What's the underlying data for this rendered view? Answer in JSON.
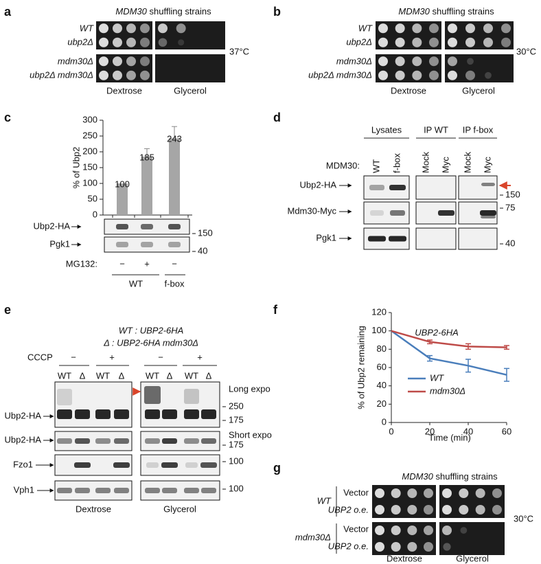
{
  "figure": {
    "a": {
      "letter": "a",
      "title_gene": "MDM30",
      "title_rest": "shuffling strains",
      "strains": [
        "WT",
        "ubp2Δ",
        "mdm30Δ",
        "ubp2Δ mdm30Δ"
      ],
      "temperature": "37°C",
      "media": [
        "Dextrose",
        "Glycerol"
      ]
    },
    "b": {
      "letter": "b",
      "title_gene": "MDM30",
      "title_rest": "shuffling strains",
      "strains": [
        "WT",
        "ubp2Δ",
        "mdm30Δ",
        "ubp2Δ mdm30Δ"
      ],
      "temperature": "30°C",
      "media": [
        "Dextrose",
        "Glycerol"
      ]
    },
    "c": {
      "letter": "c",
      "blots": [
        "Ubp2-HA",
        "Pgk1"
      ],
      "markers": [
        "150",
        "40"
      ],
      "treatment_label": "MG132:",
      "treatments": [
        "−",
        "+",
        "−"
      ],
      "groups": [
        "WT",
        "f-box"
      ]
    },
    "d": {
      "letter": "d",
      "groups": [
        "Lysates",
        "IP WT",
        "IP f-box"
      ],
      "lane_label": "MDM30:",
      "lanes": [
        "WT",
        "f-box",
        "Mock",
        "Myc",
        "Mock",
        "Myc"
      ],
      "blots": [
        "Ubp2-HA",
        "Mdm30-Myc",
        "Pgk1"
      ],
      "markers": [
        "150",
        "75",
        "40"
      ]
    },
    "e": {
      "letter": "e",
      "legend": [
        "WT : UBP2-6HA",
        "Δ : UBP2-6HA mdm30Δ"
      ],
      "treatment_label": "CCCP",
      "treatments": [
        "−",
        "+",
        "−",
        "+"
      ],
      "lanes": [
        "WT",
        "Δ",
        "WT",
        "Δ",
        "WT",
        "Δ",
        "WT",
        "Δ"
      ],
      "blots": [
        "Ubp2-HA",
        "Ubp2-HA",
        "Fzo1",
        "Vph1"
      ],
      "exposures": [
        "Long expo",
        "Short expo"
      ],
      "markers": [
        "250",
        "175",
        "175",
        "100",
        "100"
      ],
      "media": [
        "Dextrose",
        "Glycerol"
      ]
    },
    "f": {
      "letter": "f"
    },
    "g": {
      "letter": "g",
      "title_gene": "MDM30",
      "title_rest": "shuffling strains",
      "strains": [
        "WT",
        "mdm30Δ"
      ],
      "constructs": [
        "Vector",
        "UBP2 o.e.",
        "Vector",
        "UBP2 o.e."
      ],
      "temperature": "30°C",
      "media": [
        "Dextrose",
        "Glycerol"
      ]
    }
  },
  "chart_data": [
    {
      "type": "bar",
      "ylabel": "% of Ubp2",
      "values": [
        100,
        185,
        243
      ],
      "errors": [
        0,
        25,
        37
      ],
      "color": "#a6a6a6",
      "ylim": [
        0,
        300
      ],
      "yticks": [
        0,
        50,
        100,
        150,
        200,
        250,
        300
      ]
    },
    {
      "type": "line",
      "title": "UBP2-6HA",
      "xlabel": "Time (min)",
      "ylabel": "% of Ubp2 remaining",
      "x": [
        0,
        20,
        40,
        60
      ],
      "series": [
        {
          "name": "WT",
          "color": "#4a7ebb",
          "values": [
            100,
            70,
            62,
            52
          ],
          "errors": [
            0,
            3,
            7,
            7
          ]
        },
        {
          "name": "mdm30Δ",
          "color": "#be4b48",
          "values": [
            100,
            88,
            83,
            82
          ],
          "errors": [
            0,
            2,
            3,
            2
          ]
        }
      ],
      "xlim": [
        0,
        60
      ],
      "ylim": [
        0,
        120
      ],
      "xticks": [
        0,
        20,
        40,
        60
      ],
      "yticks": [
        0,
        20,
        40,
        60,
        80,
        100,
        120
      ]
    }
  ]
}
